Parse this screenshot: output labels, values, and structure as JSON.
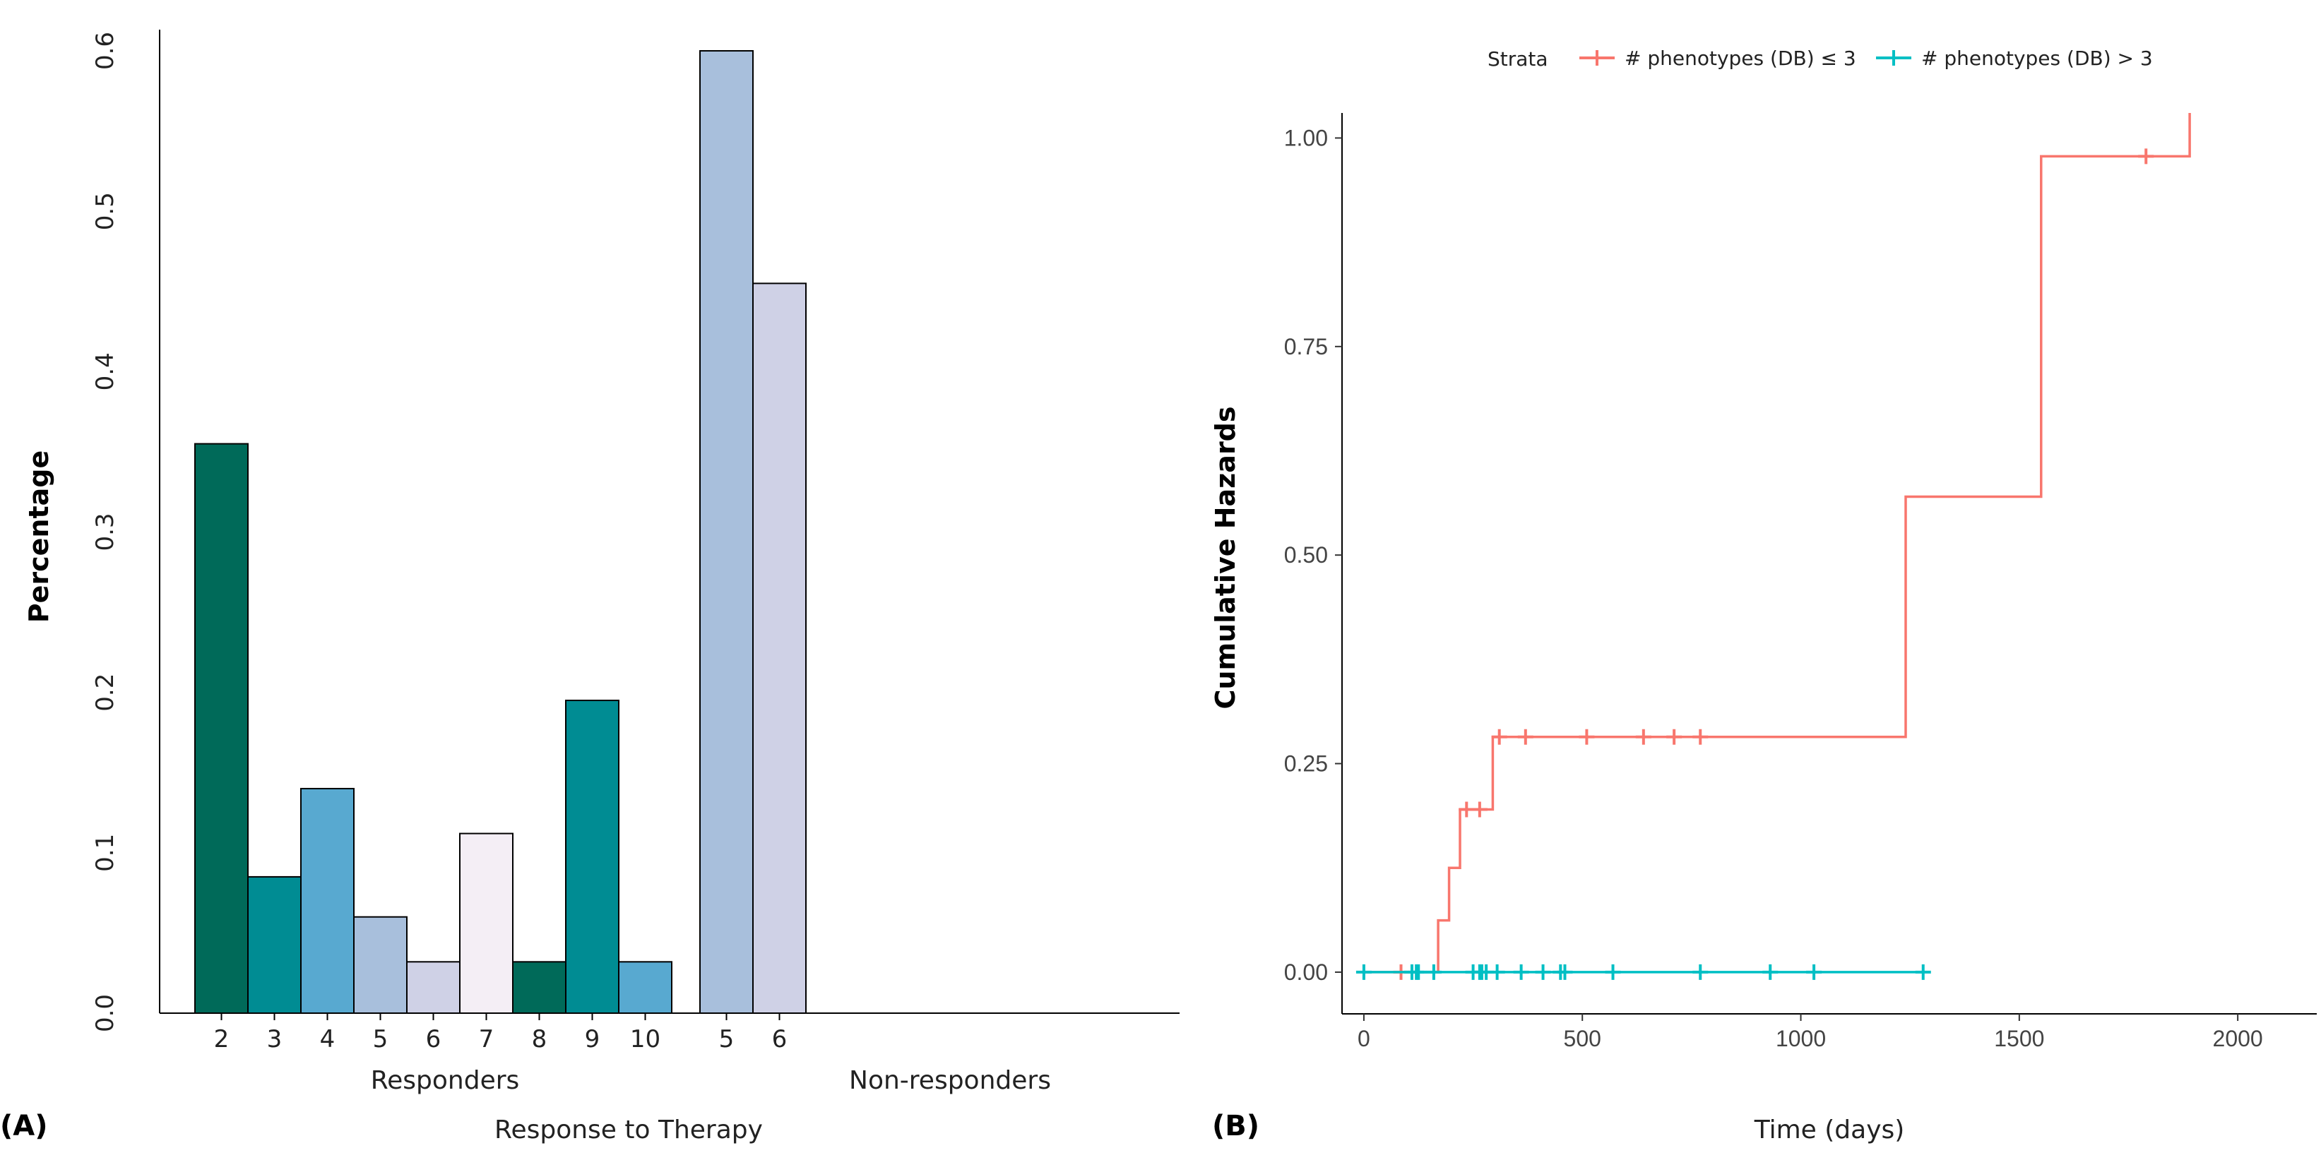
{
  "panels": {
    "a_tag": "(A)",
    "b_tag": "(B)"
  },
  "chart_data": [
    {
      "type": "bar",
      "xlabel": "Response to Therapy",
      "ylabel": "Percentage",
      "ylim": [
        0,
        0.6
      ],
      "yticks": [
        "0.0",
        "0.1",
        "0.2",
        "0.3",
        "0.4",
        "0.5",
        "0.6"
      ],
      "groups": [
        {
          "label": "Responders",
          "bars": [
            {
              "category": "2",
              "value": 0.355,
              "color": "#006A59"
            },
            {
              "category": "3",
              "value": 0.085,
              "color": "#008C93"
            },
            {
              "category": "4",
              "value": 0.14,
              "color": "#58A9D0"
            },
            {
              "category": "5",
              "value": 0.06,
              "color": "#A8BFDC"
            },
            {
              "category": "6",
              "value": 0.032,
              "color": "#CFD1E6"
            },
            {
              "category": "7",
              "value": 0.112,
              "color": "#F4EEF5"
            },
            {
              "category": "8",
              "value": 0.032,
              "color": "#006A59"
            },
            {
              "category": "9",
              "value": 0.195,
              "color": "#008C93"
            },
            {
              "category": "10",
              "value": 0.032,
              "color": "#58A9D0"
            }
          ]
        },
        {
          "label": "Non-responders",
          "bars": [
            {
              "category": "5",
              "value": 0.6,
              "color": "#A8BFDC"
            },
            {
              "category": "6",
              "value": 0.455,
              "color": "#CFD1E6"
            }
          ]
        }
      ]
    },
    {
      "type": "line",
      "xlabel": "Time (days)",
      "ylabel": "Cumulative Hazards",
      "xlim": [
        -50,
        2100
      ],
      "ylim": [
        -0.05,
        1.03
      ],
      "xticks": [
        "0",
        "500",
        "1000",
        "1500",
        "2000"
      ],
      "yticks": [
        "0.00",
        "0.25",
        "0.50",
        "0.75",
        "1.00"
      ],
      "legend": {
        "title": "Strata",
        "position": "top"
      },
      "series": [
        {
          "name": "# phenotypes (DB) ≤ 3",
          "color": "#F8766D",
          "steps": [
            [
              0,
              0
            ],
            [
              170,
              0.062
            ],
            [
              195,
              0.125
            ],
            [
              220,
              0.195
            ],
            [
              295,
              0.282
            ],
            [
              1240,
              0.57
            ],
            [
              1550,
              0.978
            ],
            [
              1890,
              1.03
            ]
          ],
          "censor_x": [
            85,
            235,
            265,
            310,
            370,
            510,
            640,
            710,
            770,
            1790
          ],
          "censor_y": [
            0,
            0.195,
            0.195,
            0.282,
            0.282,
            0.282,
            0.282,
            0.282,
            0.282,
            0.978
          ]
        },
        {
          "name": "# phenotypes (DB) > 3",
          "color": "#00BFC4",
          "steps": [
            [
              0,
              0
            ],
            [
              1280,
              0
            ]
          ],
          "censor_x": [
            0,
            110,
            120,
            125,
            160,
            250,
            265,
            270,
            280,
            305,
            360,
            410,
            450,
            460,
            570,
            770,
            930,
            1030,
            1280
          ],
          "censor_y": [
            0,
            0,
            0,
            0,
            0,
            0,
            0,
            0,
            0,
            0,
            0,
            0,
            0,
            0,
            0,
            0,
            0,
            0,
            0
          ]
        }
      ]
    }
  ]
}
